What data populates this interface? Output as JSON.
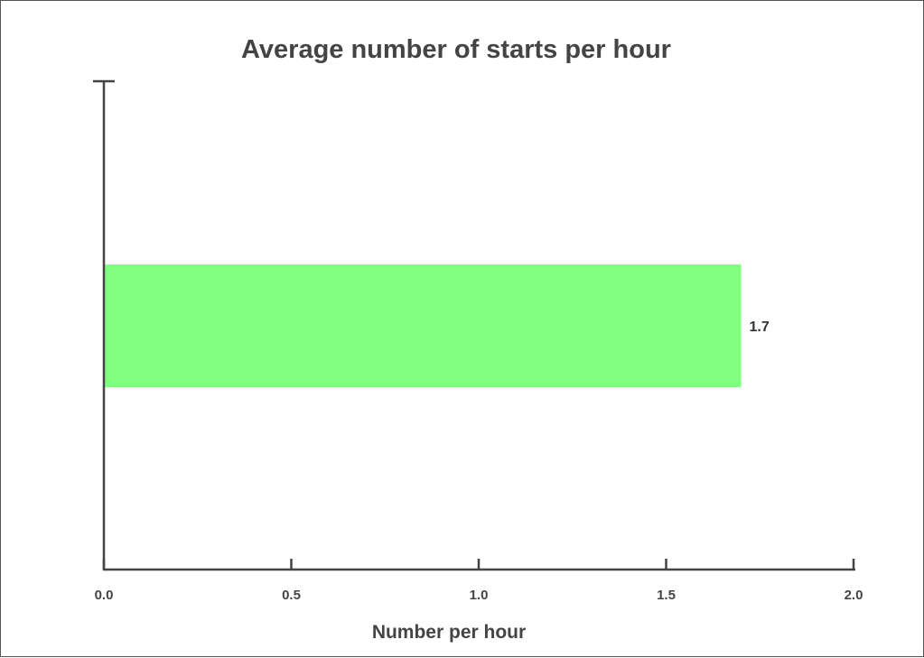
{
  "chart_data": {
    "type": "bar",
    "orientation": "horizontal",
    "title": "Average number of starts per hour",
    "xlabel": "Number per hour",
    "ylabel": "",
    "categories": [
      ""
    ],
    "values": [
      1.7
    ],
    "value_labels": [
      "1.7"
    ],
    "xlim": [
      0,
      2.0
    ],
    "x_ticks": [
      0.0,
      0.5,
      1.0,
      1.5,
      2.0
    ],
    "x_tick_labels": [
      "0.0",
      "0.5",
      "1.0",
      "1.5",
      "2.0"
    ],
    "grid": false,
    "legend": "none",
    "colors": {
      "bar": "#80ff80",
      "axis": "#444444",
      "text": "#444444",
      "border": "#555555",
      "background": "#ffffff"
    }
  }
}
